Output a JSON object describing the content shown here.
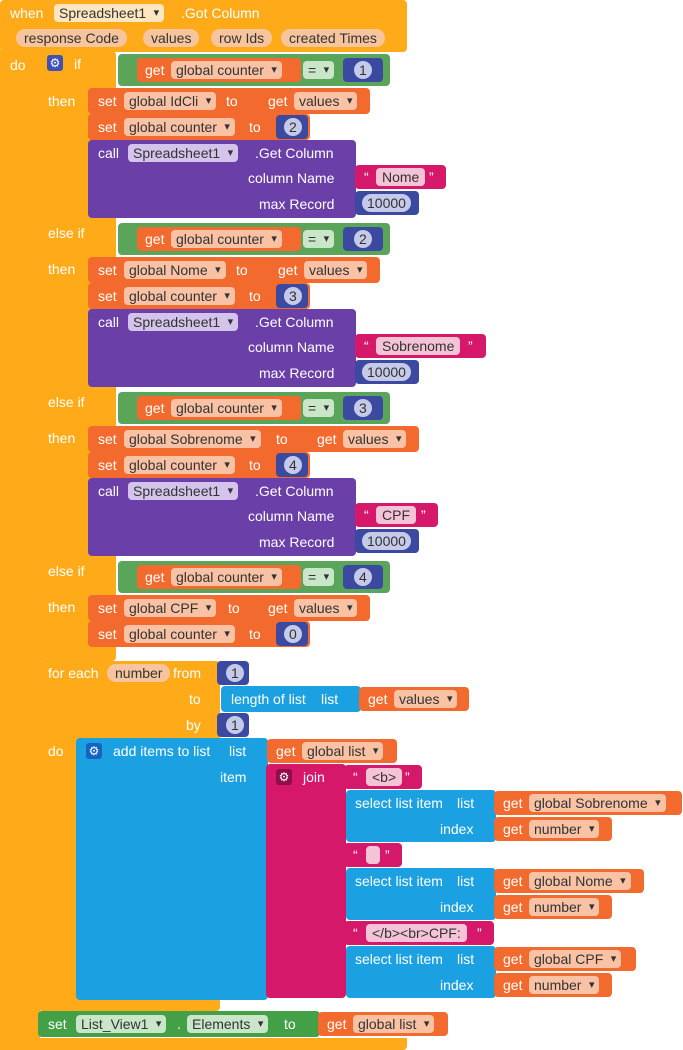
{
  "event": {
    "when": "when",
    "component": "Spreadsheet1",
    "event_name": ".Got Column",
    "params": [
      "response Code",
      "values",
      "row Ids",
      "created Times"
    ],
    "do": "do"
  },
  "kw": {
    "if": "if",
    "then": "then",
    "else_if": "else if",
    "get": "get",
    "set": "set",
    "to": "to",
    "call": "call",
    "eq": "=",
    "column_name": "column Name",
    "max_record": "max Record",
    "for_each": "for each",
    "from": "from",
    "by": "by",
    "do": "do",
    "length_of_list": "length of list",
    "list": "list",
    "add_items": "add items to list",
    "item": "item",
    "join": "join",
    "select_list_item": "select list item",
    "index": "index",
    "open_q": "“",
    "close_q": "”"
  },
  "vars": {
    "counter": "global counter",
    "idcli": "global IdCli",
    "nome": "global Nome",
    "sobrenome": "global Sobrenome",
    "cpf": "global CPF",
    "list": "global list",
    "values": "values",
    "number": "number"
  },
  "nums": {
    "one": "1",
    "two": "2",
    "three": "3",
    "four": "4",
    "zero": "0",
    "max": "10000"
  },
  "calls": {
    "component": "Spreadsheet1",
    "method": ".Get Column",
    "col1": "Nome",
    "col2": "Sobrenome",
    "col3": "CPF"
  },
  "join_strings": {
    "s1": "<b>",
    "s2": " ",
    "s3": "</b><br>CPF: "
  },
  "final": {
    "component": "List_View1",
    "dot": ".",
    "prop": "Elements"
  },
  "colors": {
    "event": "#ffab19",
    "control": "#ffab19",
    "logic": "#5ba55b",
    "variable": "#f26a2d",
    "component": "#6a3fa8",
    "math": "#3b4aa0",
    "text": "#d6186a",
    "list": "#1ba1e2",
    "setter": "#44a047"
  }
}
